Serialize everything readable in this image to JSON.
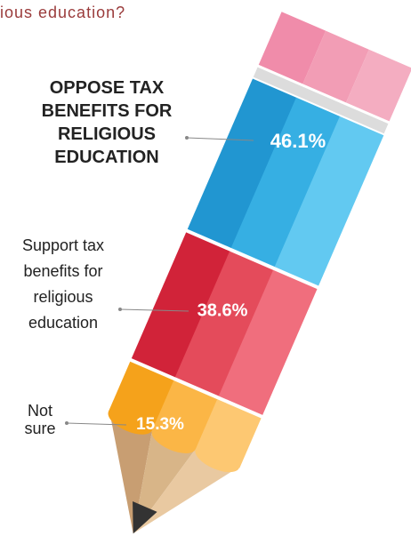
{
  "chart_data": {
    "type": "pencil",
    "title": "ious education?",
    "categories": [
      "OPPOSE TAX BENEFITS FOR RELIGIOUS EDUCATION",
      "Support tax benefits for religious education",
      "Not sure"
    ],
    "values": [
      46.1,
      38.6,
      15.3
    ],
    "value_labels": [
      "46.1%",
      "38.6%",
      "15.3%"
    ],
    "colors": [
      [
        "#2196d1",
        "#36afe3",
        "#62c9f1"
      ],
      [
        "#d12339",
        "#e44b5b",
        "#f06e7d"
      ],
      [
        "#f5a21b",
        "#fbb646",
        "#fdc872"
      ]
    ]
  }
}
